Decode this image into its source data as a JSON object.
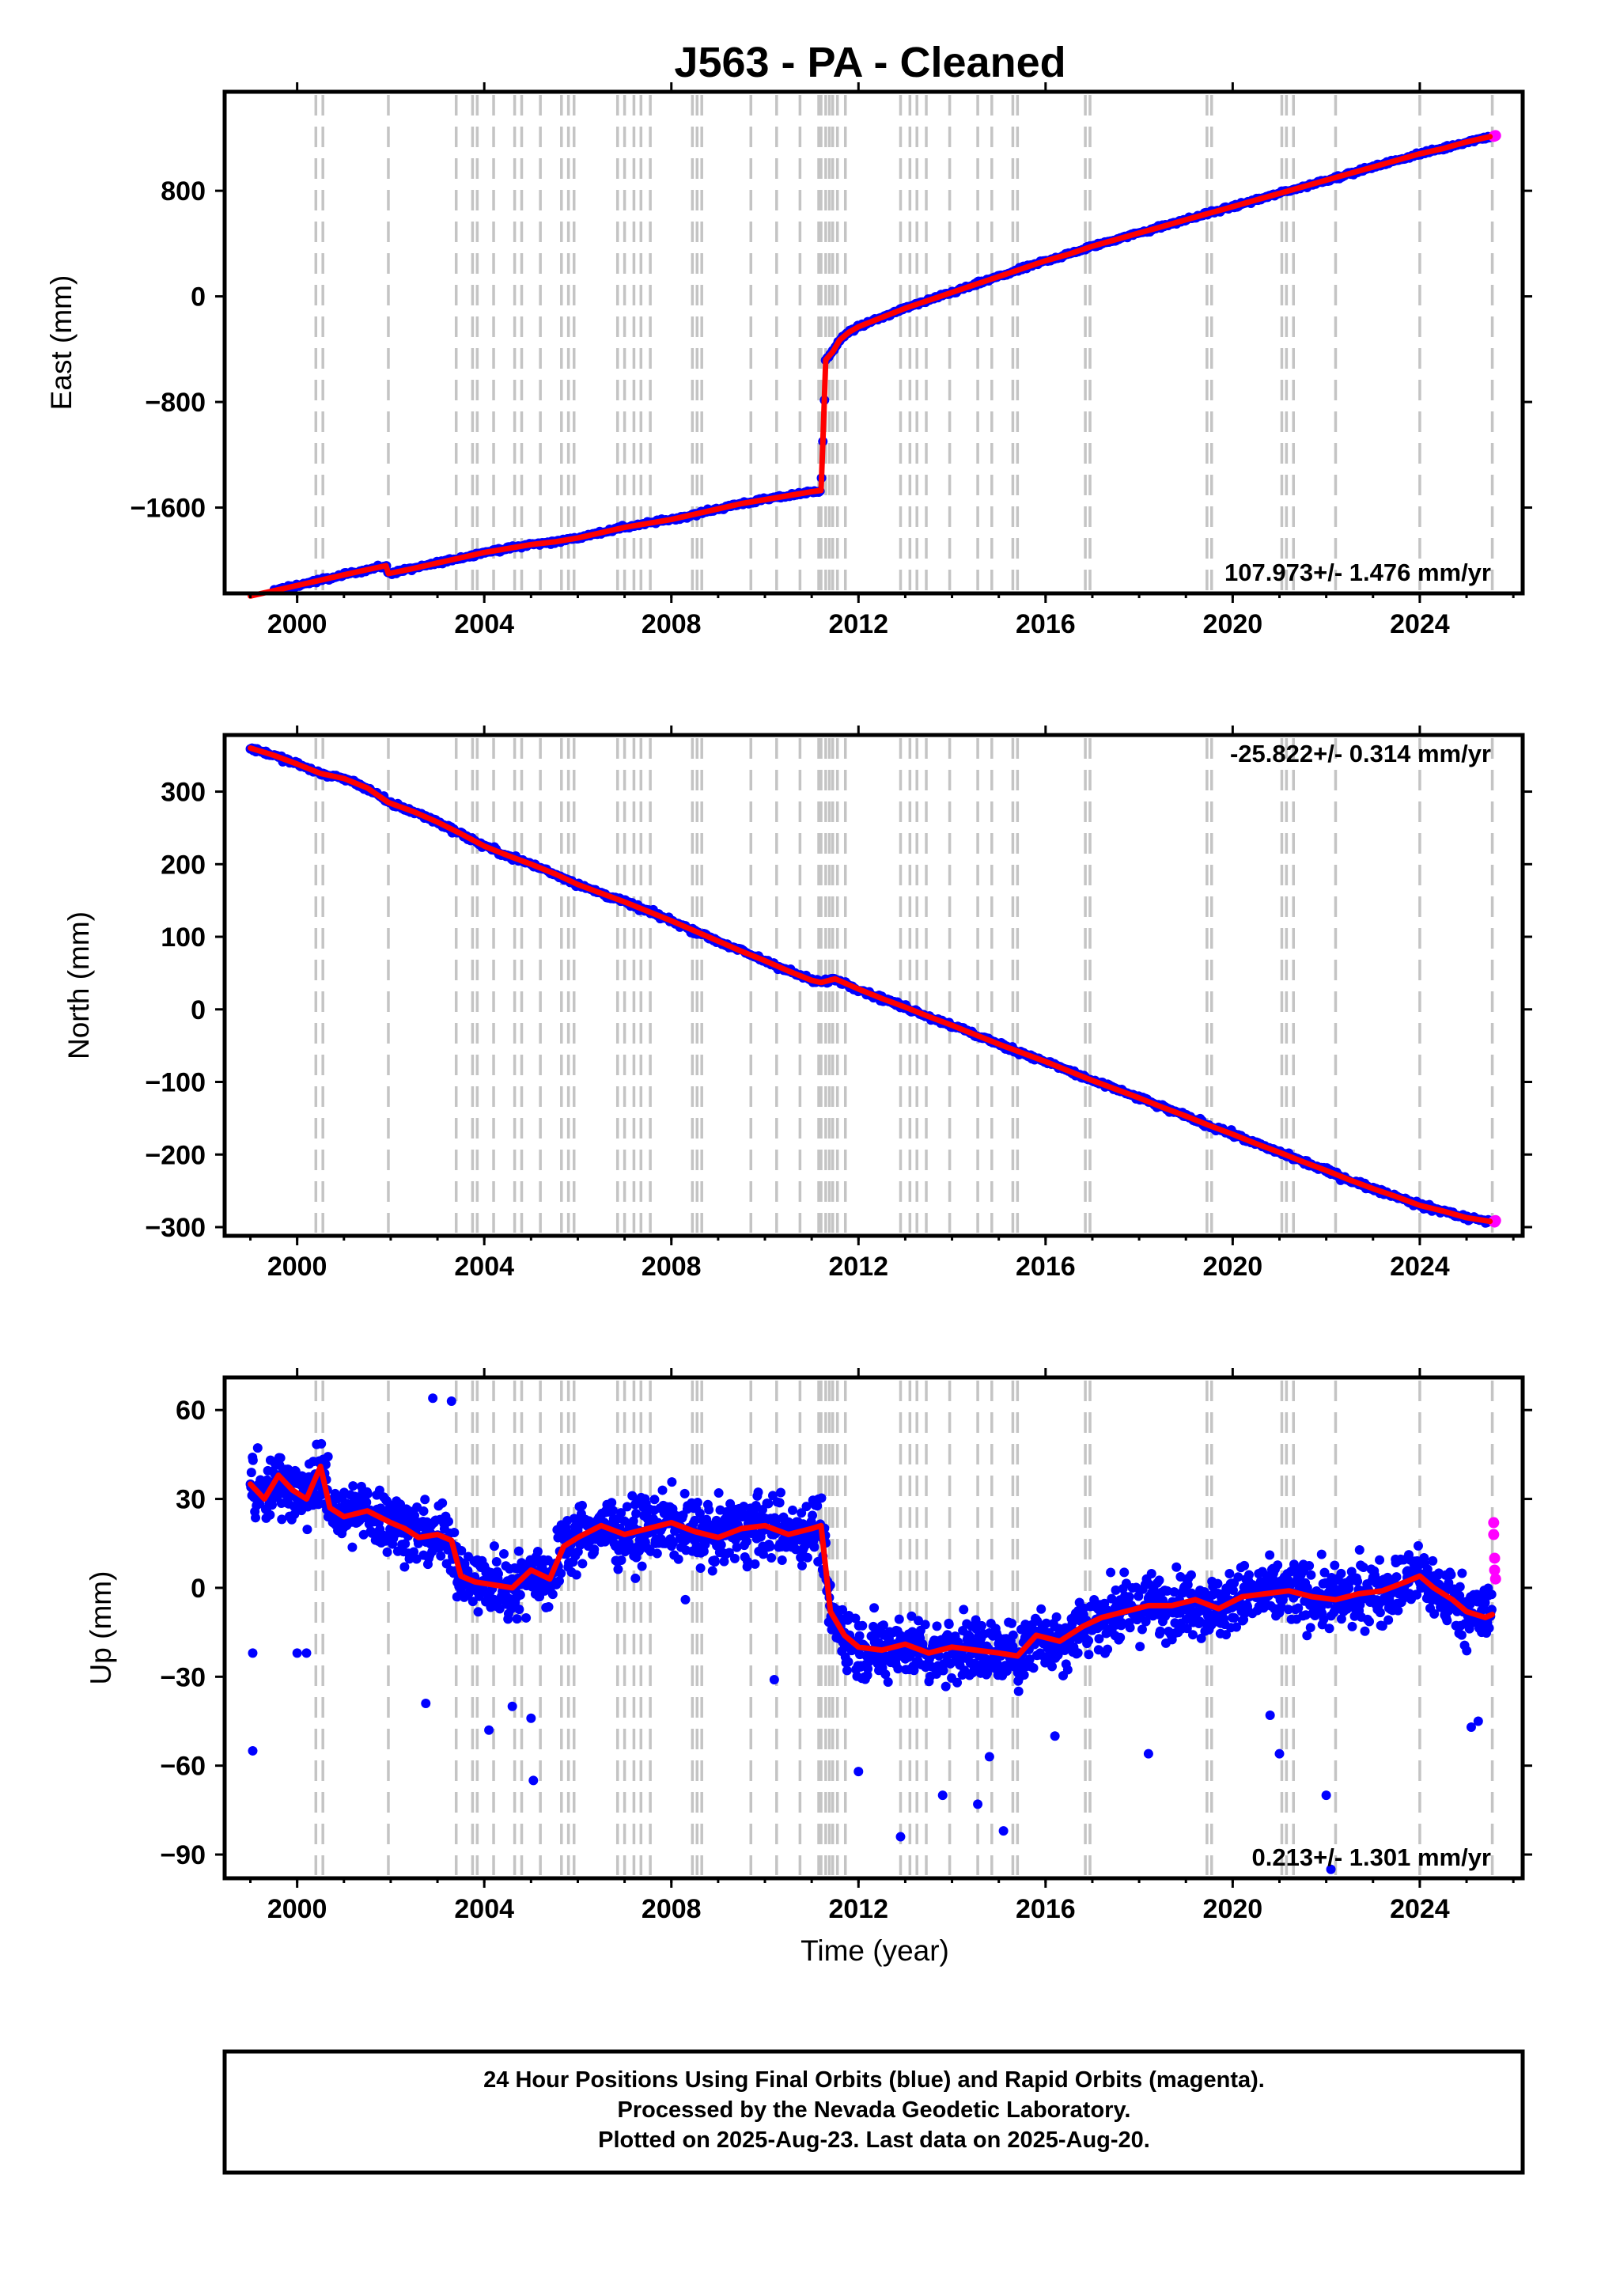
{
  "figure": {
    "title": "J563  - PA - Cleaned",
    "x_axis_title": "Time (year)",
    "footer_lines": [
      "24 Hour Positions Using Final Orbits (blue) and Rapid Orbits (magenta).",
      "Processed by the Nevada Geodetic Laboratory.",
      "Plotted on 2025-Aug-23. Last data on 2025-Aug-20."
    ]
  },
  "colors": {
    "final_orbits": "#0000ff",
    "rapid_orbits": "#ff00ff",
    "model": "#ff0000",
    "event_lines": "#c4c4c4"
  },
  "event_lines_years": [
    2000.4,
    2000.55,
    2001.95,
    2003.4,
    2003.75,
    2003.85,
    2004.2,
    2004.65,
    2004.8,
    2005.2,
    2005.65,
    2005.8,
    2005.92,
    2006.85,
    2007.0,
    2007.2,
    2007.35,
    2007.55,
    2008.45,
    2008.55,
    2008.65,
    2009.7,
    2010.25,
    2010.75,
    2011.15,
    2011.2,
    2011.3,
    2011.38,
    2011.45,
    2011.55,
    2011.72,
    2012.9,
    2013.1,
    2013.25,
    2013.45,
    2013.95,
    2014.55,
    2014.85,
    2015.3,
    2015.4,
    2016.85,
    2016.95,
    2019.45,
    2019.55,
    2021.05,
    2021.15,
    2021.3,
    2022.2,
    2024.0,
    2025.55
  ],
  "chart_data": [
    {
      "type": "scatter",
      "component": "east",
      "ylabel": "East (mm)",
      "xlim": [
        1998.45,
        2026.2
      ],
      "ylim": [
        -2250,
        1550
      ],
      "x_ticks": [
        2000,
        2004,
        2008,
        2012,
        2016,
        2020,
        2024
      ],
      "x_tick_labels": [
        "2000",
        "2004",
        "2008",
        "2012",
        "2016",
        "2020",
        "2024"
      ],
      "y_ticks": [
        800,
        0,
        -800,
        -1600
      ],
      "y_tick_labels": [
        "800",
        "0",
        "−800",
        "−1600"
      ],
      "rate_label": "107.973+/- 1.476 mm/yr",
      "rate_position": "bottom-right",
      "series": [
        {
          "name": "Final Orbits",
          "color": "#0000ff",
          "x": [
            1999.0,
            1999.5,
            2000.0,
            2000.5,
            2001.0,
            2001.5,
            2001.9,
            2001.95,
            2002.5,
            2003.0,
            2003.5,
            2004.0,
            2004.5,
            2005.0,
            2005.5,
            2006.0,
            2006.5,
            2007.0,
            2007.5,
            2008.0,
            2008.5,
            2009.0,
            2009.5,
            2010.0,
            2010.5,
            2011.0,
            2011.2,
            2011.25,
            2011.3,
            2011.45,
            2011.6,
            2011.8,
            2012.0,
            2012.5,
            2013.0,
            2013.5,
            2014.0,
            2014.5,
            2015.0,
            2015.5,
            2016.0,
            2016.5,
            2017.0,
            2017.5,
            2018.0,
            2018.5,
            2019.0,
            2019.5,
            2020.0,
            2020.5,
            2021.0,
            2021.5,
            2022.0,
            2022.5,
            2023.0,
            2023.5,
            2024.0,
            2024.5,
            2025.0,
            2025.5
          ],
          "y": [
            -2270,
            -2230,
            -2190,
            -2150,
            -2110,
            -2070,
            -2040,
            -2100,
            -2060,
            -2020,
            -1980,
            -1940,
            -1910,
            -1880,
            -1860,
            -1830,
            -1790,
            -1750,
            -1720,
            -1690,
            -1650,
            -1610,
            -1570,
            -1540,
            -1510,
            -1480,
            -1470,
            -1000,
            -480,
            -420,
            -330,
            -270,
            -230,
            -160,
            -90,
            -30,
            30,
            90,
            150,
            210,
            270,
            320,
            380,
            430,
            480,
            530,
            580,
            630,
            680,
            730,
            780,
            830,
            880,
            930,
            980,
            1030,
            1080,
            1120,
            1170,
            1210
          ]
        },
        {
          "name": "Rapid Orbits",
          "color": "#ff00ff",
          "x": [
            2025.58,
            2025.6,
            2025.62
          ],
          "y": [
            1212,
            1215,
            1218
          ]
        }
      ]
    },
    {
      "type": "scatter",
      "component": "north",
      "ylabel": "North (mm)",
      "xlim": [
        1998.45,
        2026.2
      ],
      "ylim": [
        -312,
        378
      ],
      "x_ticks": [
        2000,
        2004,
        2008,
        2012,
        2016,
        2020,
        2024
      ],
      "x_tick_labels": [
        "2000",
        "2004",
        "2008",
        "2012",
        "2016",
        "2020",
        "2024"
      ],
      "y_ticks": [
        300,
        200,
        100,
        0,
        -100,
        -200,
        -300
      ],
      "y_tick_labels": [
        "300",
        "200",
        "100",
        "0",
        "−100",
        "−200",
        "−300"
      ],
      "rate_label": "-25.822+/- 0.314 mm/yr",
      "rate_position": "top-right",
      "series": [
        {
          "name": "Final Orbits",
          "color": "#0000ff",
          "x": [
            1999.0,
            1999.5,
            2000.0,
            2000.5,
            2001.0,
            2001.5,
            2001.95,
            2002.5,
            2003.0,
            2003.5,
            2004.0,
            2004.5,
            2005.0,
            2005.5,
            2006.0,
            2006.5,
            2007.0,
            2007.5,
            2008.0,
            2008.5,
            2009.0,
            2009.5,
            2010.0,
            2010.5,
            2011.0,
            2011.2,
            2011.5,
            2012.0,
            2012.5,
            2013.0,
            2013.5,
            2014.0,
            2014.5,
            2015.0,
            2015.5,
            2016.0,
            2016.5,
            2017.0,
            2017.5,
            2018.0,
            2018.5,
            2019.0,
            2019.5,
            2020.0,
            2020.5,
            2021.0,
            2021.5,
            2022.0,
            2022.5,
            2023.0,
            2023.5,
            2024.0,
            2024.5,
            2025.0,
            2025.5
          ],
          "y": [
            360,
            350,
            338,
            325,
            318,
            305,
            285,
            272,
            258,
            242,
            225,
            212,
            200,
            187,
            172,
            160,
            148,
            135,
            122,
            108,
            94,
            80,
            67,
            53,
            40,
            37,
            42,
            28,
            15,
            3,
            -10,
            -22,
            -35,
            -48,
            -60,
            -72,
            -85,
            -98,
            -110,
            -122,
            -135,
            -147,
            -160,
            -172,
            -185,
            -197,
            -210,
            -222,
            -235,
            -247,
            -258,
            -270,
            -278,
            -287,
            -292
          ]
        },
        {
          "name": "Rapid Orbits",
          "color": "#ff00ff",
          "x": [
            2025.58,
            2025.6,
            2025.62
          ],
          "y": [
            -292,
            -293,
            -291
          ]
        }
      ]
    },
    {
      "type": "scatter",
      "component": "up",
      "ylabel": "Up (mm)",
      "xlim": [
        1998.45,
        2026.2
      ],
      "ylim": [
        -98,
        71
      ],
      "x_ticks": [
        2000,
        2004,
        2008,
        2012,
        2016,
        2020,
        2024
      ],
      "x_tick_labels": [
        "2000",
        "2004",
        "2008",
        "2012",
        "2016",
        "2020",
        "2024"
      ],
      "y_ticks": [
        60,
        30,
        0,
        -30,
        -60,
        -90
      ],
      "y_tick_labels": [
        "60",
        "30",
        "0",
        "−30",
        "−60",
        "−90"
      ],
      "rate_label": "0.213+/- 1.301 mm/yr",
      "rate_position": "bottom-right",
      "series": [
        {
          "name": "Final Orbits",
          "color": "#0000ff",
          "x": [
            1999.0,
            1999.3,
            1999.6,
            1999.9,
            2000.2,
            2000.5,
            2000.7,
            2001.0,
            2001.5,
            2002.0,
            2002.3,
            2002.6,
            2003.0,
            2003.3,
            2003.5,
            2003.8,
            2004.2,
            2004.6,
            2005.0,
            2005.4,
            2005.7,
            2006.0,
            2006.5,
            2007.0,
            2007.5,
            2008.0,
            2008.5,
            2009.0,
            2009.5,
            2010.0,
            2010.5,
            2011.0,
            2011.2,
            2011.4,
            2011.7,
            2012.0,
            2012.5,
            2013.0,
            2013.5,
            2014.0,
            2014.5,
            2015.0,
            2015.4,
            2015.8,
            2016.3,
            2016.8,
            2017.2,
            2017.7,
            2018.2,
            2018.7,
            2019.2,
            2019.7,
            2020.2,
            2020.7,
            2021.2,
            2021.7,
            2022.2,
            2022.7,
            2023.2,
            2023.7,
            2024.0,
            2024.3,
            2024.7,
            2025.0,
            2025.4,
            2025.55
          ],
          "y": [
            35,
            30,
            38,
            33,
            30,
            41,
            27,
            24,
            26,
            22,
            20,
            17,
            18,
            16,
            4,
            2,
            1,
            0,
            6,
            3,
            14,
            17,
            21,
            18,
            20,
            22,
            19,
            17,
            20,
            21,
            18,
            20,
            21,
            -8,
            -16,
            -20,
            -21,
            -19,
            -22,
            -20,
            -21,
            -22,
            -23,
            -16,
            -18,
            -13,
            -10,
            -8,
            -6,
            -6,
            -4,
            -7,
            -3,
            -2,
            -1,
            -3,
            -4,
            -2,
            -1,
            2,
            4,
            0,
            -4,
            -8,
            -10,
            -9
          ]
        },
        {
          "name": "Rapid Orbits",
          "color": "#ff00ff",
          "x": [
            2025.58,
            2025.58,
            2025.6,
            2025.6,
            2025.62
          ],
          "y": [
            22,
            18,
            10,
            6,
            3
          ]
        }
      ]
    }
  ]
}
